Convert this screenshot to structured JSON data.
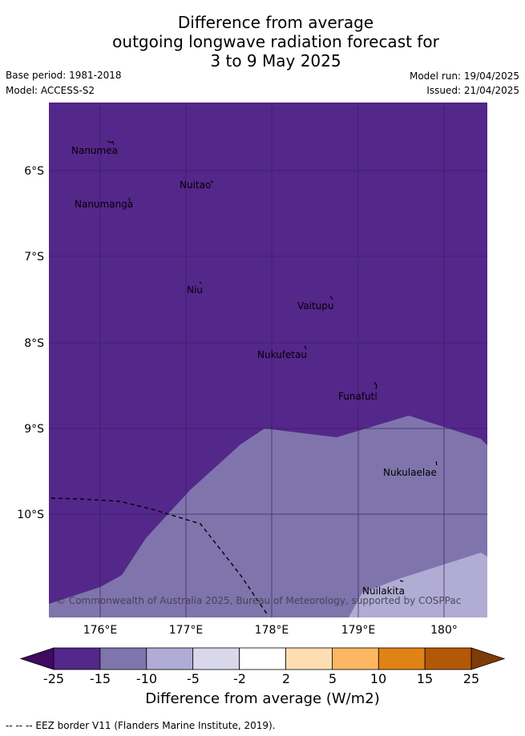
{
  "title_lines": [
    "Difference from average",
    "outgoing longwave radiation forecast for",
    "3 to 9 May 2025"
  ],
  "base_period": "Base period: 1981-2018",
  "model": "Model: ACCESS-S2",
  "model_run": "Model run: 19/04/2025",
  "issued": "Issued: 21/04/2025",
  "copyright": "© Commonwealth of Australia 2025, Bureau of Meteorology, supported by COSPPac",
  "lat_labels": [
    "6°S",
    "7°S",
    "8°S",
    "9°S",
    "10°S"
  ],
  "lon_labels": [
    "176°E",
    "177°E",
    "178°E",
    "179°E",
    "180°"
  ],
  "places": [
    {
      "name": "Nanumea"
    },
    {
      "name": "Nuitao"
    },
    {
      "name": "Nanumanga"
    },
    {
      "name": "Niu"
    },
    {
      "name": "Vaitupu"
    },
    {
      "name": "Nukufetau"
    },
    {
      "name": "Funafuti"
    },
    {
      "name": "Nukulaelae"
    },
    {
      "name": "Nuilakita"
    }
  ],
  "colorbar": {
    "ticks": [
      "-25",
      "-15",
      "-10",
      "-5",
      "-2",
      "2",
      "5",
      "10",
      "15",
      "25"
    ],
    "colors": [
      "#3f0a60",
      "#54278a",
      "#7f75ac",
      "#b1acd3",
      "#d9d8eb",
      "#ffffff",
      "#fddeb3",
      "#fdb763",
      "#e08214",
      "#b35806",
      "#7f3b08"
    ],
    "label": "Difference from average (W/m2)"
  },
  "footnote": "-- -- -- EEZ border V11 (Flanders Marine Institute, 2019)."
}
